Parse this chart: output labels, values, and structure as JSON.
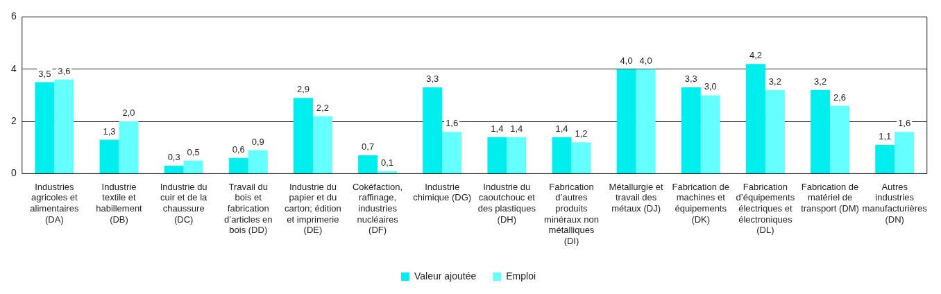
{
  "chart_data": {
    "type": "bar",
    "categories": [
      "Industries agricoles et alimentaires (DA)",
      "Industrie textile et habillement (DB)",
      "Industrie du cuir et de la chaussure (DC)",
      "Travail du bois et fabrication d’articles en bois (DD)",
      "Industrie du papier et du carton; édition et imprimerie (DE)",
      "Cokéfaction, raffinage, industries nucléaires (DF)",
      "Industrie chimique (DG)",
      "Industrie du caoutchouc et des plastiques (DH)",
      "Fabrication d’autres produits minéraux non métalliques (DI)",
      "Métallurgie et travail des métaux (DJ)",
      "Fabrication de machines et équipements (DK)",
      "Fabrication d’équipements électriques et électroniques (DL)",
      "Fabrication de matériel de transport (DM)",
      "Autres industries manufacturières (DN)"
    ],
    "series": [
      {
        "name": "Valeur ajoutée",
        "color": "#00eeee",
        "values": [
          3.5,
          1.3,
          0.3,
          0.6,
          2.9,
          0.7,
          3.3,
          1.4,
          1.4,
          4.0,
          3.3,
          4.2,
          3.2,
          1.1
        ],
        "value_labels": [
          "3,5",
          "1,3",
          "0,3",
          "0,6",
          "2,9",
          "0,7",
          "3,3",
          "1,4",
          "1,4",
          "4,0",
          "3,3",
          "4,2",
          "3,2",
          "1,1"
        ]
      },
      {
        "name": "Emploi",
        "color": "#66ffff",
        "values": [
          3.6,
          2.0,
          0.5,
          0.9,
          2.2,
          0.1,
          1.6,
          1.4,
          1.2,
          4.0,
          3.0,
          3.2,
          2.6,
          1.6
        ],
        "value_labels": [
          "3,6",
          "2,0",
          "0,5",
          "0,9",
          "2,2",
          "0,1",
          "1,6",
          "1,4",
          "1,2",
          "4,0",
          "3,0",
          "3,2",
          "2,6",
          "1,6"
        ]
      }
    ],
    "ylim": [
      0,
      6
    ],
    "yticks": [
      0,
      2,
      4,
      6
    ],
    "grid": "y",
    "legend": "bottom"
  }
}
